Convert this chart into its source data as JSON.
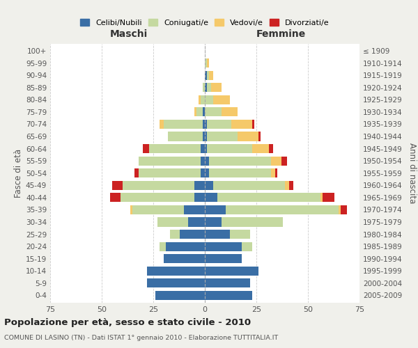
{
  "age_groups": [
    "0-4",
    "5-9",
    "10-14",
    "15-19",
    "20-24",
    "25-29",
    "30-34",
    "35-39",
    "40-44",
    "45-49",
    "50-54",
    "55-59",
    "60-64",
    "65-69",
    "70-74",
    "75-79",
    "80-84",
    "85-89",
    "90-94",
    "95-99",
    "100+"
  ],
  "birth_years": [
    "2005-2009",
    "2000-2004",
    "1995-1999",
    "1990-1994",
    "1985-1989",
    "1980-1984",
    "1975-1979",
    "1970-1974",
    "1965-1969",
    "1960-1964",
    "1955-1959",
    "1950-1954",
    "1945-1949",
    "1940-1944",
    "1935-1939",
    "1930-1934",
    "1925-1929",
    "1920-1924",
    "1915-1919",
    "1910-1914",
    "≤ 1909"
  ],
  "male": {
    "celibi": [
      24,
      28,
      28,
      20,
      19,
      12,
      8,
      10,
      5,
      5,
      2,
      2,
      2,
      1,
      1,
      1,
      0,
      0,
      0,
      0,
      0
    ],
    "coniugati": [
      0,
      0,
      0,
      0,
      3,
      5,
      15,
      25,
      36,
      35,
      30,
      30,
      25,
      17,
      19,
      3,
      2,
      1,
      0,
      0,
      0
    ],
    "vedovi": [
      0,
      0,
      0,
      0,
      0,
      0,
      0,
      1,
      0,
      0,
      0,
      0,
      0,
      0,
      2,
      1,
      1,
      0,
      0,
      0,
      0
    ],
    "divorziati": [
      0,
      0,
      0,
      0,
      0,
      0,
      0,
      0,
      5,
      5,
      2,
      0,
      3,
      0,
      0,
      0,
      0,
      0,
      0,
      0,
      0
    ]
  },
  "female": {
    "nubili": [
      23,
      22,
      26,
      18,
      18,
      12,
      8,
      10,
      6,
      4,
      2,
      2,
      1,
      1,
      1,
      0,
      0,
      1,
      1,
      0,
      0
    ],
    "coniugate": [
      0,
      0,
      0,
      0,
      5,
      10,
      30,
      55,
      50,
      35,
      30,
      30,
      22,
      15,
      12,
      8,
      4,
      2,
      1,
      1,
      0
    ],
    "vedove": [
      0,
      0,
      0,
      0,
      0,
      0,
      0,
      1,
      1,
      2,
      2,
      5,
      8,
      10,
      10,
      8,
      8,
      5,
      2,
      1,
      0
    ],
    "divorziate": [
      0,
      0,
      0,
      0,
      0,
      0,
      0,
      3,
      6,
      2,
      1,
      3,
      2,
      1,
      1,
      0,
      0,
      0,
      0,
      0,
      0
    ]
  },
  "colors": {
    "celibi": "#3a6ea5",
    "coniugati": "#c5d9a0",
    "vedovi": "#f5c96a",
    "divorziati": "#cc2222"
  },
  "title": "Popolazione per età, sesso e stato civile - 2010",
  "subtitle": "COMUNE DI LASINO (TN) - Dati ISTAT 1° gennaio 2010 - Elaborazione TUTTITALIA.IT",
  "xlabel_left": "Maschi",
  "xlabel_right": "Femmine",
  "ylabel_left": "Fasce di età",
  "ylabel_right": "Anni di nascita",
  "xlim": 75,
  "legend_labels": [
    "Celibi/Nubili",
    "Coniugati/e",
    "Vedovi/e",
    "Divorziati/e"
  ],
  "bg_color": "#f0f0eb",
  "plot_bg": "#ffffff"
}
